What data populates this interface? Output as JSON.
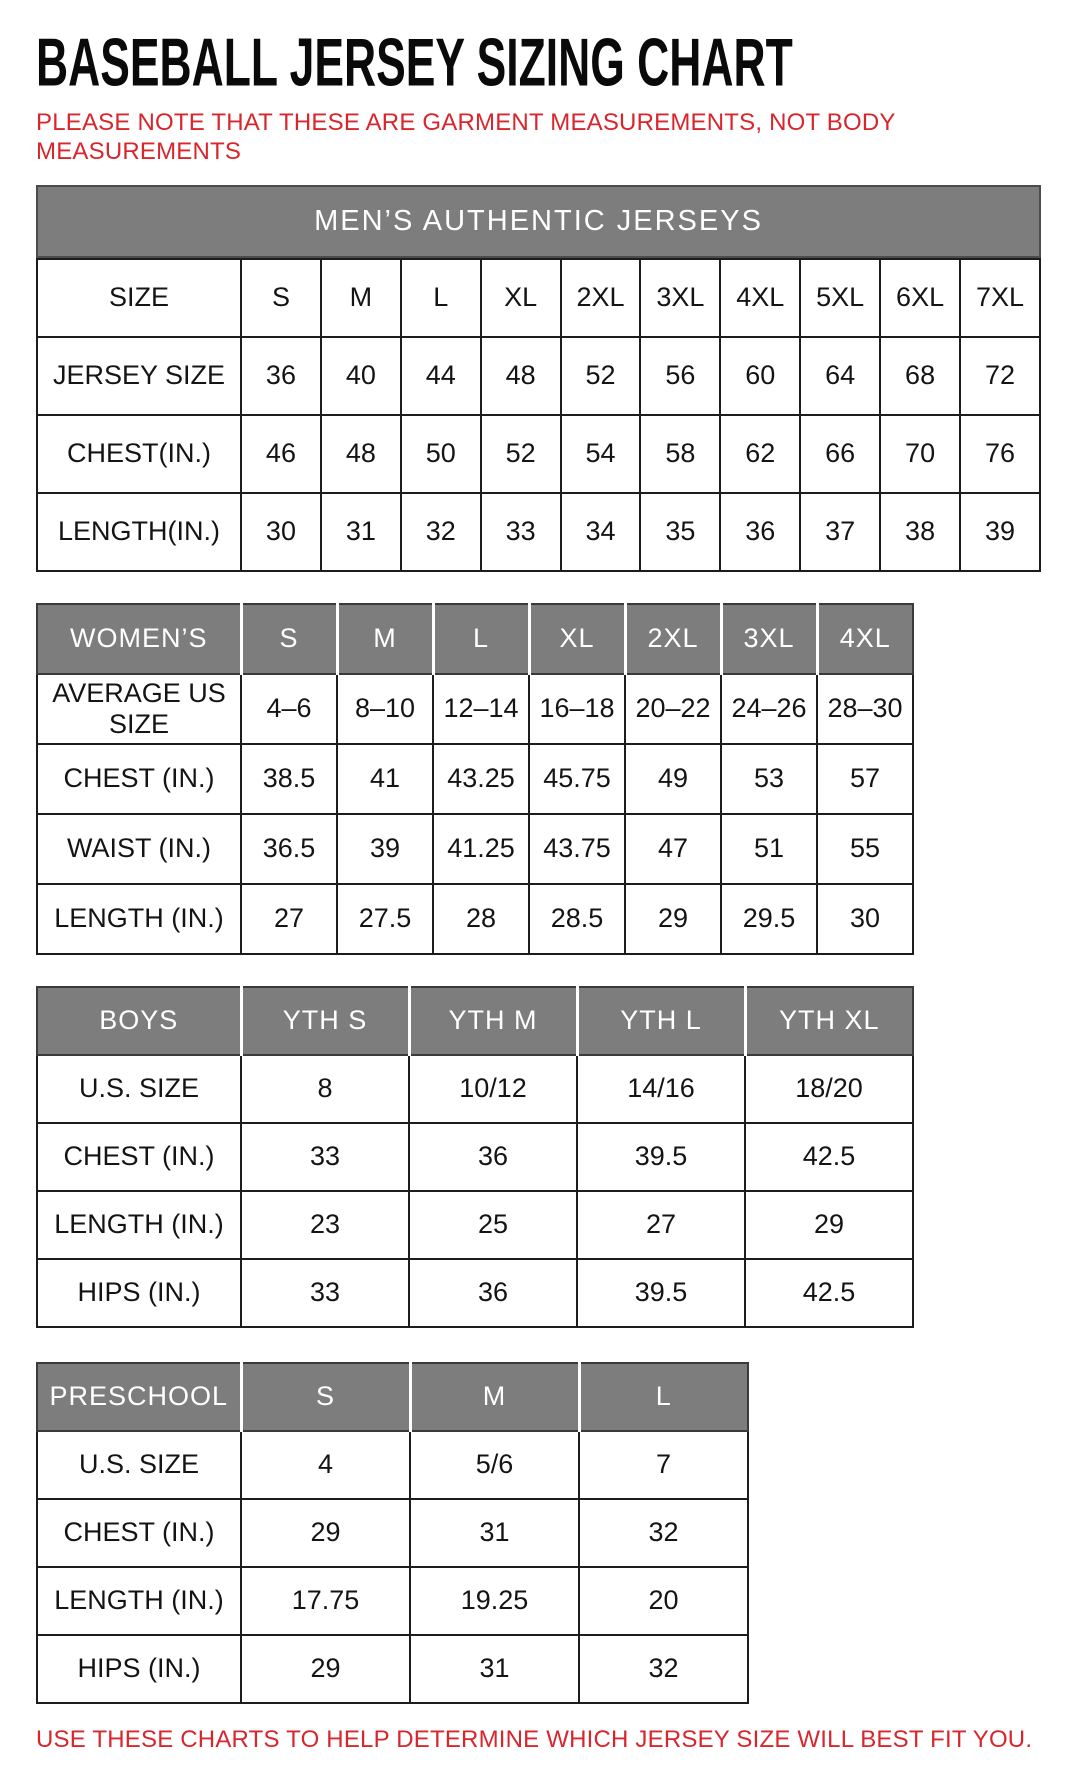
{
  "page": {
    "title": "BASEBALL JERSEY SIZING CHART",
    "note": "PLEASE NOTE THAT THESE ARE GARMENT MEASUREMENTS, NOT BODY MEASUREMENTS",
    "footer": "USE THESE CHARTS TO HELP DETERMINE WHICH JERSEY SIZE WILL BEST FIT YOU.",
    "colors": {
      "accent_red": "#d8262c",
      "header_gray": "#7d7d7d",
      "header_text": "#ffffff",
      "border": "#1c1c1c"
    }
  },
  "mens_banner": "MEN’S AUTHENTIC JERSEYS",
  "chart_data": [
    {
      "type": "table",
      "id": "mens",
      "title": "MEN’S AUTHENTIC JERSEYS",
      "header": [
        "SIZE",
        "S",
        "M",
        "L",
        "XL",
        "2XL",
        "3XL",
        "4XL",
        "5XL",
        "6XL",
        "7XL"
      ],
      "rows": [
        {
          "label": "JERSEY SIZE",
          "values": [
            "36",
            "40",
            "44",
            "48",
            "52",
            "56",
            "60",
            "64",
            "68",
            "72"
          ]
        },
        {
          "label": "CHEST(IN.)",
          "values": [
            "46",
            "48",
            "50",
            "52",
            "54",
            "58",
            "62",
            "66",
            "70",
            "76"
          ]
        },
        {
          "label": "LENGTH(IN.)",
          "values": [
            "30",
            "31",
            "32",
            "33",
            "34",
            "35",
            "36",
            "37",
            "38",
            "39"
          ]
        }
      ]
    },
    {
      "type": "table",
      "id": "womens",
      "title": "WOMEN’S",
      "header": [
        "WOMEN’S",
        "S",
        "M",
        "L",
        "XL",
        "2XL",
        "3XL",
        "4XL"
      ],
      "rows": [
        {
          "label": "AVERAGE US SIZE",
          "values": [
            "4–6",
            "8–10",
            "12–14",
            "16–18",
            "20–22",
            "24–26",
            "28–30"
          ]
        },
        {
          "label": "CHEST (IN.)",
          "values": [
            "38.5",
            "41",
            "43.25",
            "45.75",
            "49",
            "53",
            "57"
          ]
        },
        {
          "label": "WAIST (IN.)",
          "values": [
            "36.5",
            "39",
            "41.25",
            "43.75",
            "47",
            "51",
            "55"
          ]
        },
        {
          "label": "LENGTH (IN.)",
          "values": [
            "27",
            "27.5",
            "28",
            "28.5",
            "29",
            "29.5",
            "30"
          ]
        }
      ]
    },
    {
      "type": "table",
      "id": "boys",
      "title": "BOYS",
      "header": [
        "BOYS",
        "YTH S",
        "YTH M",
        "YTH L",
        "YTH XL"
      ],
      "rows": [
        {
          "label": "U.S. SIZE",
          "values": [
            "8",
            "10/12",
            "14/16",
            "18/20"
          ]
        },
        {
          "label": "CHEST (IN.)",
          "values": [
            "33",
            "36",
            "39.5",
            "42.5"
          ]
        },
        {
          "label": "LENGTH (IN.)",
          "values": [
            "23",
            "25",
            "27",
            "29"
          ]
        },
        {
          "label": "HIPS (IN.)",
          "values": [
            "33",
            "36",
            "39.5",
            "42.5"
          ]
        }
      ]
    },
    {
      "type": "table",
      "id": "preschool",
      "title": "PRESCHOOL",
      "header": [
        "PRESCHOOL",
        "S",
        "M",
        "L"
      ],
      "rows": [
        {
          "label": "U.S. SIZE",
          "values": [
            "4",
            "5/6",
            "7"
          ]
        },
        {
          "label": "CHEST (IN.)",
          "values": [
            "29",
            "31",
            "32"
          ]
        },
        {
          "label": "LENGTH (IN.)",
          "values": [
            "17.75",
            "19.25",
            "20"
          ]
        },
        {
          "label": "HIPS (IN.)",
          "values": [
            "29",
            "31",
            "32"
          ]
        }
      ]
    }
  ]
}
